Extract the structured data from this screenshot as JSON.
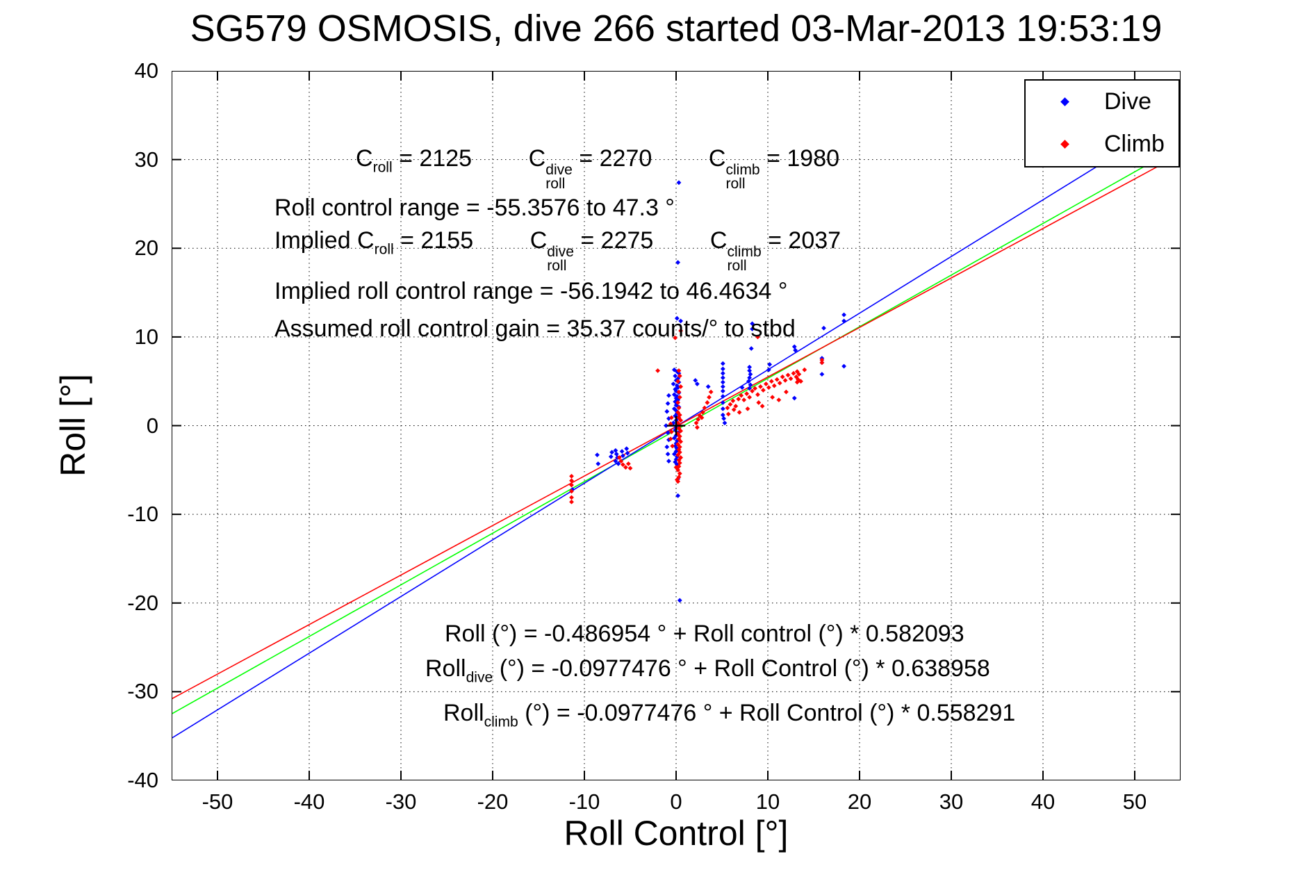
{
  "title": "SG579 OSMOSIS, dive 266 started 03-Mar-2013 19:53:19",
  "xlabel": "Roll Control [°]",
  "ylabel": "Roll [°]",
  "colors": {
    "dive": "#0000ff",
    "climb": "#ff0000",
    "fit_combined": "#00ff00",
    "axis": "#000000",
    "background": "#ffffff"
  },
  "legend": {
    "items": [
      {
        "label": "Dive",
        "color": "#0000ff"
      },
      {
        "label": "Climb",
        "color": "#ff0000"
      }
    ]
  },
  "annotations": {
    "line1": [
      [
        "n",
        "C"
      ],
      [
        "sub",
        "roll"
      ],
      [
        "n",
        " = 2125"
      ],
      [
        "gap"
      ],
      [
        "n",
        "C"
      ],
      [
        "stack",
        "dive",
        "roll"
      ],
      [
        "n",
        " = 2270"
      ],
      [
        "gap"
      ],
      [
        "n",
        "C"
      ],
      [
        "stack",
        "climb",
        "roll"
      ],
      [
        "n",
        " = 1980"
      ]
    ],
    "line2": [
      [
        "n",
        "Roll control range = -55.3576 to 47.3 °"
      ]
    ],
    "line3": [
      [
        "n",
        "Implied C"
      ],
      [
        "sub",
        "roll"
      ],
      [
        "n",
        " = 2155"
      ],
      [
        "gap"
      ],
      [
        "n",
        "C"
      ],
      [
        "stack",
        "dive",
        "roll"
      ],
      [
        "n",
        " = 2275"
      ],
      [
        "gap"
      ],
      [
        "n",
        "C"
      ],
      [
        "stack",
        "climb",
        "roll"
      ],
      [
        "n",
        " = 2037"
      ]
    ],
    "line4": [
      [
        "n",
        "Implied roll control range = -56.1942 to 46.4634 °"
      ]
    ],
    "line5": [
      [
        "n",
        "Assumed roll control gain = 35.37 counts/° to stbd"
      ]
    ],
    "eqA": [
      [
        "n",
        "Roll (°) = -0.486954 ° + Roll control (°) * 0.582093"
      ]
    ],
    "eqB": [
      [
        "n",
        "Roll"
      ],
      [
        "sub",
        "dive"
      ],
      [
        "n",
        " (°) = -0.0977476 ° + Roll Control (°) * 0.638958"
      ]
    ],
    "eqC": [
      [
        "n",
        "Roll"
      ],
      [
        "sub",
        "climb"
      ],
      [
        "n",
        " (°) = -0.0977476 ° + Roll Control (°) * 0.558291"
      ]
    ]
  },
  "chart_data": {
    "type": "scatter",
    "title": "SG579 OSMOSIS, dive 266 started 03-Mar-2013 19:53:19",
    "xlabel": "Roll Control [°]",
    "ylabel": "Roll [°]",
    "xlim": [
      -55,
      55
    ],
    "ylim": [
      -40,
      40
    ],
    "x_ticks": [
      -50,
      -40,
      -30,
      -20,
      -10,
      0,
      10,
      20,
      30,
      40,
      50
    ],
    "y_ticks": [
      -40,
      -30,
      -20,
      -10,
      0,
      10,
      20,
      30,
      40
    ],
    "grid": "dotted",
    "legend_position": "top-right",
    "origin_marker": {
      "x": 0,
      "y": 0,
      "symbol": "+",
      "color": "#000000"
    },
    "fit_lines": [
      {
        "name": "Roll combined",
        "color": "#00ff00",
        "intercept": -0.486954,
        "slope": 0.582093,
        "x_range": [
          -55,
          55
        ]
      },
      {
        "name": "Roll dive",
        "color": "#0000ff",
        "intercept": -0.0977476,
        "slope": 0.638958,
        "x_range": [
          -55,
          55
        ]
      },
      {
        "name": "Roll climb",
        "color": "#ff0000",
        "intercept": -0.0977476,
        "slope": 0.558291,
        "x_range": [
          -55,
          55
        ]
      }
    ],
    "series": [
      {
        "name": "Dive",
        "color": "#0000ff",
        "marker": "diamond-dot",
        "points": [
          [
            -0.2,
            6.3
          ],
          [
            0.1,
            6.1
          ],
          [
            0.3,
            5.9
          ],
          [
            -0.1,
            5.6
          ],
          [
            0.2,
            5.3
          ],
          [
            0,
            5.1
          ],
          [
            0.3,
            4.9
          ],
          [
            -0.3,
            4.7
          ],
          [
            0.1,
            4.5
          ],
          [
            0.2,
            4.3
          ],
          [
            -0.1,
            4.1
          ],
          [
            0,
            3.9
          ],
          [
            0.3,
            3.7
          ],
          [
            -0.2,
            3.5
          ],
          [
            0.1,
            3.3
          ],
          [
            0,
            3.1
          ],
          [
            0.2,
            2.9
          ],
          [
            -0.1,
            2.7
          ],
          [
            0.1,
            2.5
          ],
          [
            0,
            2.3
          ],
          [
            0.3,
            2.1
          ],
          [
            -0.2,
            1.9
          ],
          [
            0,
            1.7
          ],
          [
            0.1,
            1.4
          ],
          [
            -0.1,
            1.1
          ],
          [
            0.2,
            0.9
          ],
          [
            0,
            0.6
          ],
          [
            -0.3,
            0.3
          ],
          [
            0.1,
            0.1
          ],
          [
            0,
            -0.2
          ],
          [
            -0.1,
            -0.5
          ],
          [
            0.2,
            -0.8
          ],
          [
            0,
            -1.1
          ],
          [
            -0.2,
            -1.4
          ],
          [
            0.1,
            -1.7
          ],
          [
            0,
            -2
          ],
          [
            -0.1,
            -2.3
          ],
          [
            0.1,
            -2.6
          ],
          [
            0,
            -2.9
          ],
          [
            -0.2,
            -3.2
          ],
          [
            0.1,
            -3.5
          ],
          [
            0,
            -3.8
          ],
          [
            -0.1,
            -4.1
          ],
          [
            0.1,
            -4.4
          ],
          [
            -0.8,
            3.4
          ],
          [
            -0.9,
            2.5
          ],
          [
            -1,
            1.6
          ],
          [
            -0.8,
            0.8
          ],
          [
            -1.1,
            0
          ],
          [
            -0.9,
            -0.8
          ],
          [
            -0.8,
            -1.6
          ],
          [
            -1,
            -2.4
          ],
          [
            -0.9,
            -3.2
          ],
          [
            -0.8,
            -4
          ],
          [
            0.2,
            -6
          ],
          [
            0.2,
            -7.9
          ],
          [
            0.4,
            -19.7
          ],
          [
            0.3,
            27.4
          ],
          [
            0.2,
            18.4
          ],
          [
            0.1,
            12.1
          ],
          [
            0.5,
            11.8
          ],
          [
            -6.6,
            -2.8
          ],
          [
            -6.5,
            -3.2
          ],
          [
            -6.4,
            -3.6
          ],
          [
            -6.6,
            -4
          ],
          [
            -6.3,
            -4.3
          ],
          [
            -5.9,
            -2.9
          ],
          [
            -5.8,
            -3.4
          ],
          [
            -7,
            -3
          ],
          [
            -7.1,
            -3.5
          ],
          [
            -5.4,
            -2.6
          ],
          [
            -5.3,
            -3.1
          ],
          [
            -8.6,
            -3.3
          ],
          [
            -8.5,
            -4.3
          ],
          [
            -11.3,
            -7.2
          ],
          [
            2.3,
            4.7
          ],
          [
            3.5,
            4.4
          ],
          [
            2.1,
            5.1
          ],
          [
            5.1,
            7
          ],
          [
            5.1,
            6.4
          ],
          [
            5.1,
            5.9
          ],
          [
            5.1,
            5.4
          ],
          [
            5.1,
            4.9
          ],
          [
            5.1,
            4.4
          ],
          [
            5.1,
            3.9
          ],
          [
            5.1,
            3.3
          ],
          [
            5.1,
            2.6
          ],
          [
            5.1,
            1.9
          ],
          [
            5.1,
            1.2
          ],
          [
            5.2,
            0.8
          ],
          [
            5.3,
            0.3
          ],
          [
            7.2,
            4.3
          ],
          [
            8,
            6.6
          ],
          [
            8,
            6.2
          ],
          [
            8.1,
            5.8
          ],
          [
            8,
            5.4
          ],
          [
            7.9,
            5
          ],
          [
            8.1,
            4.6
          ],
          [
            8,
            4.2
          ],
          [
            8.2,
            8.7
          ],
          [
            8.3,
            10.9
          ],
          [
            8.3,
            11.5
          ],
          [
            10.2,
            6.9
          ],
          [
            10.1,
            6.3
          ],
          [
            12.9,
            8.9
          ],
          [
            13,
            8.5
          ],
          [
            12.9,
            3.1
          ],
          [
            15.9,
            7.6
          ],
          [
            15.9,
            7.1
          ],
          [
            15.9,
            5.8
          ],
          [
            16.1,
            11
          ],
          [
            18.3,
            12.5
          ],
          [
            18.3,
            11.8
          ],
          [
            18.3,
            6.7
          ]
        ]
      },
      {
        "name": "Climb",
        "color": "#ff0000",
        "marker": "diamond-dot",
        "points": [
          [
            0.2,
            1.5
          ],
          [
            0.4,
            1.2
          ],
          [
            0.3,
            0.9
          ],
          [
            0.5,
            0.6
          ],
          [
            0.2,
            0.3
          ],
          [
            0.4,
            0
          ],
          [
            0.3,
            -0.3
          ],
          [
            0.5,
            -0.6
          ],
          [
            0.2,
            -0.9
          ],
          [
            0.4,
            -1.2
          ],
          [
            0.3,
            -1.5
          ],
          [
            0.5,
            -1.8
          ],
          [
            0.2,
            -2.1
          ],
          [
            0.4,
            -2.4
          ],
          [
            0.3,
            -2.7
          ],
          [
            0.4,
            -3
          ],
          [
            0.2,
            -3.3
          ],
          [
            0.5,
            -3.6
          ],
          [
            0.3,
            -3.9
          ],
          [
            0.4,
            -4.2
          ],
          [
            0.3,
            -4.6
          ],
          [
            0.2,
            -5
          ],
          [
            0.4,
            -5.4
          ],
          [
            0.3,
            -5.8
          ],
          [
            0.2,
            -6.3
          ],
          [
            0,
            -4.7
          ],
          [
            0.1,
            -6.1
          ],
          [
            0.3,
            6.2
          ],
          [
            0.4,
            5.6
          ],
          [
            0.2,
            5
          ],
          [
            0.5,
            4.4
          ],
          [
            0.3,
            3.8
          ],
          [
            0.4,
            3.2
          ],
          [
            0.2,
            2.6
          ],
          [
            0.3,
            2
          ],
          [
            0.5,
            10.7
          ],
          [
            -0.1,
            9.9
          ],
          [
            -0.5,
            0.9
          ],
          [
            -0.6,
            0.2
          ],
          [
            -0.5,
            -0.7
          ],
          [
            -0.6,
            -1.5
          ],
          [
            -0.4,
            -2.3
          ],
          [
            -2,
            6.2
          ],
          [
            -6.2,
            -3.6
          ],
          [
            -6,
            -4
          ],
          [
            -5.8,
            -4.4
          ],
          [
            -5.5,
            -4.7
          ],
          [
            -5.2,
            -4.3
          ],
          [
            -5,
            -4.8
          ],
          [
            -11.4,
            -5.7
          ],
          [
            -11.4,
            -6.2
          ],
          [
            -11.4,
            -6.7
          ],
          [
            -11.4,
            -7.4
          ],
          [
            -11.4,
            -8.1
          ],
          [
            -11.4,
            -8.6
          ],
          [
            2.2,
            0.3
          ],
          [
            2.4,
            0.7
          ],
          [
            2.6,
            1.1
          ],
          [
            2.9,
            1.5
          ],
          [
            3.1,
            2
          ],
          [
            3.4,
            2.6
          ],
          [
            3.6,
            3.2
          ],
          [
            3.8,
            3.8
          ],
          [
            2.3,
            -0.2
          ],
          [
            2.8,
            0.9
          ],
          [
            5.6,
            2
          ],
          [
            5.9,
            2.4
          ],
          [
            6.2,
            2.8
          ],
          [
            6.5,
            2.2
          ],
          [
            6.8,
            3
          ],
          [
            7.1,
            3.4
          ],
          [
            7.4,
            2.9
          ],
          [
            7.7,
            3.6
          ],
          [
            8,
            3.2
          ],
          [
            8.3,
            3.9
          ],
          [
            8.6,
            4.2
          ],
          [
            8.9,
            3.5
          ],
          [
            9.2,
            4.4
          ],
          [
            9.5,
            4
          ],
          [
            9.8,
            4.7
          ],
          [
            10.1,
            4.3
          ],
          [
            10.4,
            5
          ],
          [
            10.7,
            4.5
          ],
          [
            11,
            5.2
          ],
          [
            11.3,
            4.8
          ],
          [
            11.6,
            5.5
          ],
          [
            11.9,
            5.1
          ],
          [
            12.2,
            5.7
          ],
          [
            12.5,
            5.3
          ],
          [
            12.8,
            5.9
          ],
          [
            13.1,
            5.5
          ],
          [
            13.2,
            6.1
          ],
          [
            13.3,
            5.2
          ],
          [
            13.4,
            5.8
          ],
          [
            13.2,
            4.9
          ],
          [
            9,
            2.6
          ],
          [
            9.4,
            2.2
          ],
          [
            7.8,
            1.9
          ],
          [
            6.9,
            1.5
          ],
          [
            8.9,
            10
          ],
          [
            15.9,
            7.4
          ],
          [
            15.9,
            7.1
          ],
          [
            14,
            6.3
          ],
          [
            13.6,
            5
          ],
          [
            12,
            3.8
          ],
          [
            10.5,
            3.2
          ],
          [
            11.2,
            2.9
          ],
          [
            6.3,
            1.8
          ],
          [
            5.7,
            1.3
          ]
        ]
      }
    ]
  }
}
